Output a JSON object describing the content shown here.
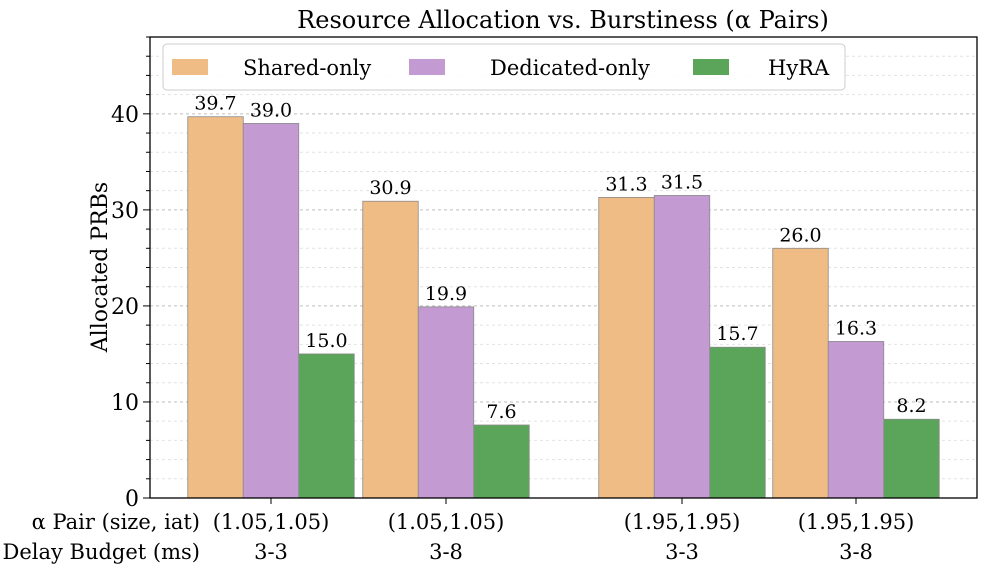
{
  "chart_data": {
    "type": "bar",
    "title": "Resource Allocation vs. Burstiness (α Pairs)",
    "ylabel": "Allocated PRBs",
    "ylim": [
      0,
      48
    ],
    "yticks": [
      "0",
      "10",
      "20",
      "30",
      "40"
    ],
    "grid": true,
    "legend_position": "top",
    "row_labels": [
      "α Pair (size, iat)",
      "Delay Budget (ms)"
    ],
    "groups": [
      {
        "alpha": "(1.05,1.05)",
        "delay": "3-3"
      },
      {
        "alpha": "(1.05,1.05)",
        "delay": "3-8"
      },
      {
        "alpha": "(1.95,1.95)",
        "delay": "3-3"
      },
      {
        "alpha": "(1.95,1.95)",
        "delay": "3-8"
      }
    ],
    "series": [
      {
        "name": "Shared-only",
        "color": "#f0bc86",
        "values": [
          39.7,
          30.9,
          31.3,
          26.0
        ],
        "labels": [
          "39.7",
          "30.9",
          "31.3",
          "26.0"
        ]
      },
      {
        "name": "Dedicated-only",
        "color": "#c39bd2",
        "values": [
          39.0,
          19.9,
          31.5,
          16.3
        ],
        "labels": [
          "39.0",
          "19.9",
          "31.5",
          "16.3"
        ]
      },
      {
        "name": "HyRA",
        "color": "#5aa55a",
        "values": [
          15.0,
          7.6,
          15.7,
          8.2
        ],
        "labels": [
          "15.0",
          "7.6",
          "15.7",
          "8.2"
        ]
      }
    ]
  }
}
